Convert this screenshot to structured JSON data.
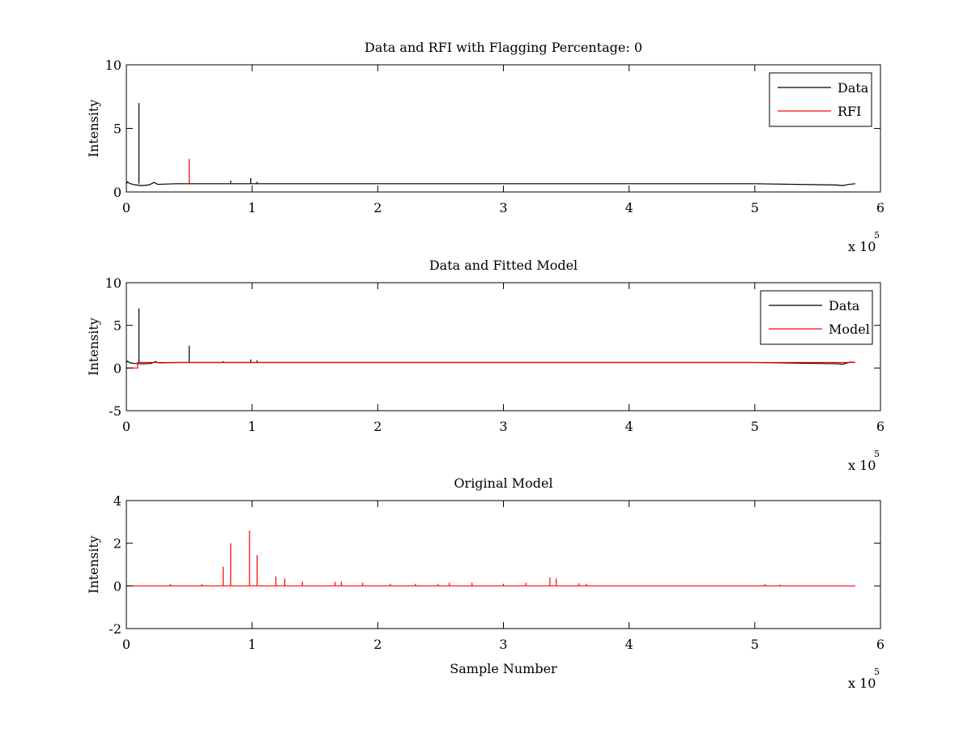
{
  "chart_data": [
    {
      "type": "line",
      "title": "Data and RFI with Flagging Percentage: 0",
      "xlabel": "",
      "ylabel": "Intensity",
      "xlim": [
        0,
        6
      ],
      "ylim": [
        0,
        10
      ],
      "x_ticks": [
        "0",
        "1",
        "2",
        "3",
        "4",
        "5",
        "6"
      ],
      "y_ticks": [
        "0",
        "5",
        "10"
      ],
      "x_multiplier": "x 10",
      "x_multiplier_exp": "5",
      "legend_position": "top-right",
      "legend": [
        "Data",
        "RFI"
      ],
      "series": [
        {
          "name": "Data",
          "color": "#000000",
          "baseline": 0.65,
          "x": [
            0,
            0.01,
            0.02,
            0.05,
            0.08,
            0.12,
            0.18,
            0.22,
            0.25,
            0.4,
            0.82,
            0.98,
            1.2,
            2.0,
            3.0,
            4.0,
            5.0,
            5.65,
            5.7,
            5.75,
            5.8
          ],
          "y": [
            0.65,
            0.8,
            0.7,
            0.6,
            0.55,
            0.5,
            0.55,
            0.75,
            0.6,
            0.65,
            0.65,
            0.65,
            0.65,
            0.65,
            0.65,
            0.65,
            0.65,
            0.55,
            0.5,
            0.6,
            0.65
          ],
          "spikes": [
            {
              "x": 0.1,
              "y": 7.0
            },
            {
              "x": 0.83,
              "y": 0.9
            },
            {
              "x": 0.99,
              "y": 1.1
            },
            {
              "x": 1.04,
              "y": 0.8
            }
          ]
        },
        {
          "name": "RFI",
          "color": "#ff0000",
          "baseline": null,
          "x": [],
          "y": [],
          "spikes": [
            {
              "x": 0.5,
              "y": 2.6
            }
          ]
        }
      ]
    },
    {
      "type": "line",
      "title": "Data and Fitted Model",
      "xlabel": "",
      "ylabel": "Intensity",
      "xlim": [
        0,
        6
      ],
      "ylim": [
        -5,
        10
      ],
      "x_ticks": [
        "0",
        "1",
        "2",
        "3",
        "4",
        "5",
        "6"
      ],
      "y_ticks": [
        "-5",
        "0",
        "5",
        "10"
      ],
      "x_multiplier": "x 10",
      "x_multiplier_exp": "5",
      "legend_position": "top-right",
      "legend": [
        "Data",
        "Model"
      ],
      "series": [
        {
          "name": "Data",
          "color": "#000000",
          "baseline": 0.65,
          "x": [
            0,
            0.01,
            0.03,
            0.06,
            0.1,
            0.15,
            0.2,
            0.23,
            0.26,
            0.4,
            1.0,
            2.0,
            3.0,
            4.0,
            5.0,
            5.65,
            5.7,
            5.76,
            5.8
          ],
          "y": [
            0.65,
            0.8,
            0.6,
            0.55,
            0.5,
            0.5,
            0.55,
            0.75,
            0.6,
            0.65,
            0.65,
            0.65,
            0.65,
            0.65,
            0.65,
            0.5,
            0.45,
            0.7,
            0.65
          ],
          "spikes": [
            {
              "x": 0.1,
              "y": 7.0
            },
            {
              "x": 0.5,
              "y": 2.6
            },
            {
              "x": 0.77,
              "y": 0.8
            },
            {
              "x": 0.99,
              "y": 1.0
            },
            {
              "x": 1.04,
              "y": 0.9
            }
          ]
        },
        {
          "name": "Model",
          "color": "#ff0000",
          "baseline": 0.65,
          "x": [
            0,
            0.09,
            0.09,
            0.1,
            0.2,
            1.0,
            2.0,
            3.0,
            4.0,
            5.0,
            5.8
          ],
          "y": [
            0.0,
            0.0,
            0.65,
            0.65,
            0.65,
            0.65,
            0.65,
            0.65,
            0.65,
            0.65,
            0.65
          ],
          "spikes": []
        }
      ]
    },
    {
      "type": "line",
      "title": "Original Model",
      "xlabel": "Sample Number",
      "ylabel": "Intensity",
      "xlim": [
        0,
        6
      ],
      "ylim": [
        -2,
        4
      ],
      "x_ticks": [
        "0",
        "1",
        "2",
        "3",
        "4",
        "5",
        "6"
      ],
      "y_ticks": [
        "-2",
        "0",
        "2",
        "4"
      ],
      "x_multiplier": "x 10",
      "x_multiplier_exp": "5",
      "legend_position": "none",
      "legend": [],
      "series": [
        {
          "name": "",
          "color": "#ff0000",
          "baseline": 0.0,
          "x": [
            0,
            5.8
          ],
          "y": [
            0,
            0
          ],
          "spikes": [
            {
              "x": 0.77,
              "y": 0.9
            },
            {
              "x": 0.83,
              "y": 2.0
            },
            {
              "x": 0.98,
              "y": 2.6
            },
            {
              "x": 1.04,
              "y": 1.45
            },
            {
              "x": 1.19,
              "y": 0.45
            },
            {
              "x": 1.26,
              "y": 0.35
            },
            {
              "x": 1.4,
              "y": 0.2
            },
            {
              "x": 1.66,
              "y": 0.2
            },
            {
              "x": 1.71,
              "y": 0.2
            },
            {
              "x": 1.88,
              "y": 0.15
            },
            {
              "x": 2.57,
              "y": 0.15
            },
            {
              "x": 2.75,
              "y": 0.15
            },
            {
              "x": 3.18,
              "y": 0.15
            },
            {
              "x": 3.37,
              "y": 0.4
            },
            {
              "x": 3.42,
              "y": 0.35
            },
            {
              "x": 3.6,
              "y": 0.12
            },
            {
              "x": 0.35,
              "y": 0.08
            },
            {
              "x": 0.6,
              "y": 0.08
            },
            {
              "x": 2.1,
              "y": 0.1
            },
            {
              "x": 2.3,
              "y": 0.1
            },
            {
              "x": 2.48,
              "y": 0.1
            },
            {
              "x": 3.0,
              "y": 0.1
            },
            {
              "x": 3.66,
              "y": 0.1
            },
            {
              "x": 5.08,
              "y": 0.08
            },
            {
              "x": 5.2,
              "y": 0.06
            }
          ]
        }
      ]
    }
  ]
}
